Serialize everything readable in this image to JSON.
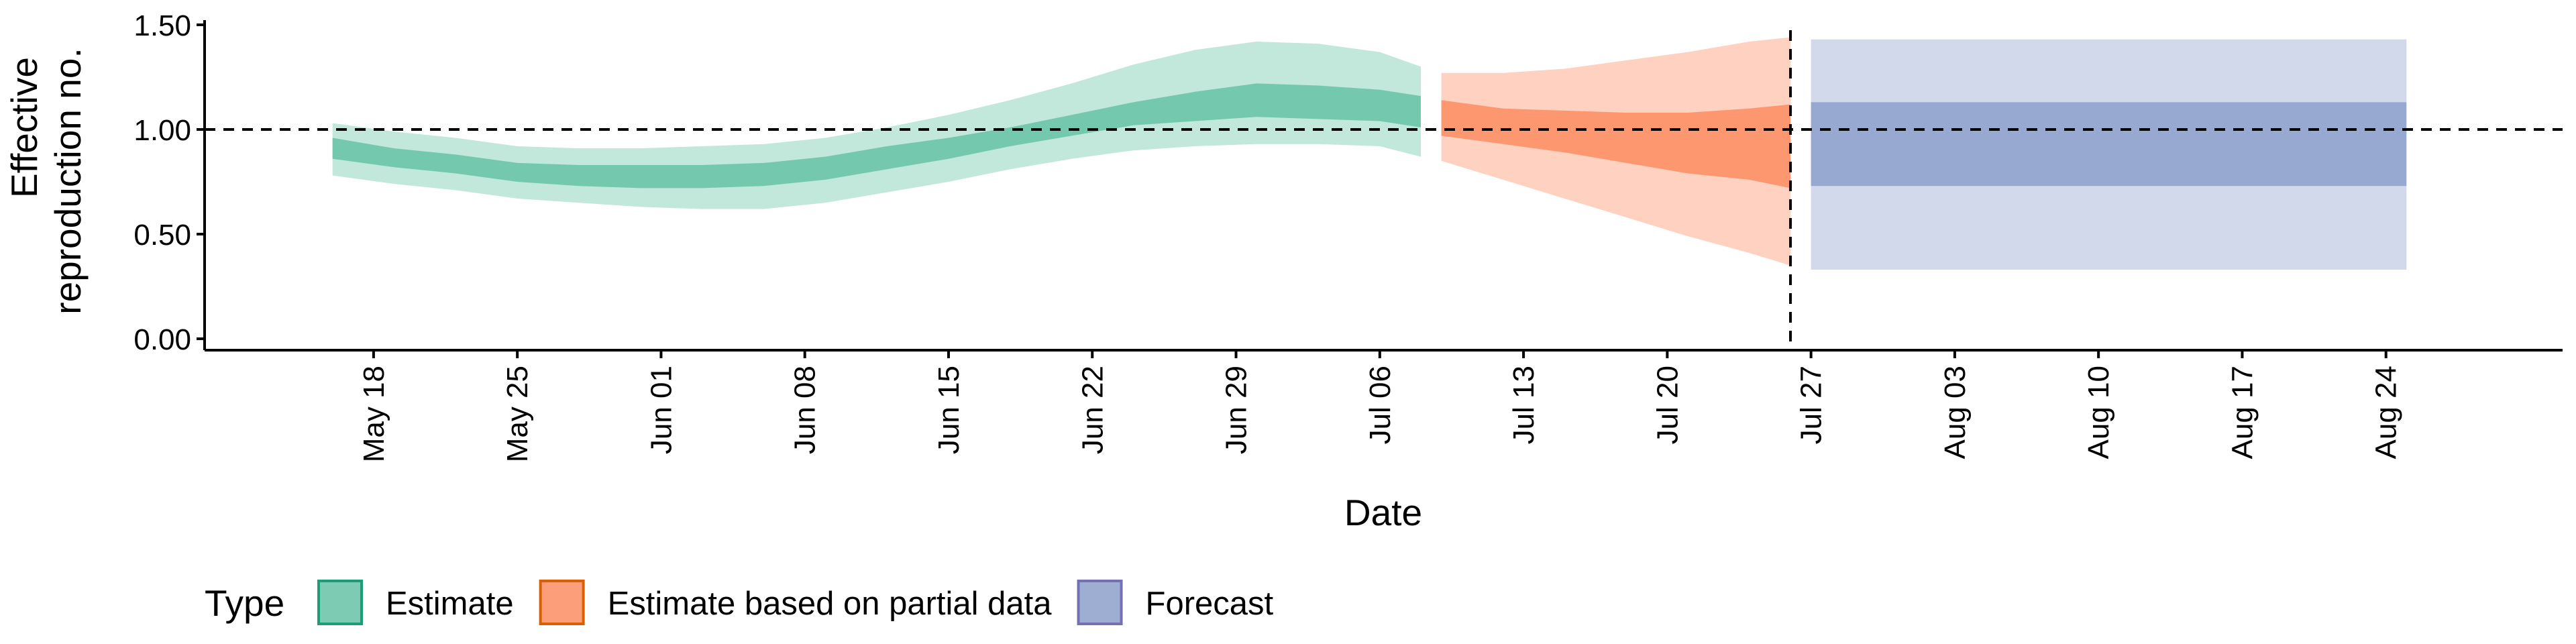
{
  "chart_data": {
    "type": "area",
    "xlabel": "Date",
    "ylabel_lines": [
      "Effective",
      "reproduction no."
    ],
    "ylim": [
      0,
      1.5
    ],
    "y_ticks": [
      {
        "value": 0,
        "label": "0.00"
      },
      {
        "value": 0.5,
        "label": "0.50"
      },
      {
        "value": 1,
        "label": "1.00"
      },
      {
        "value": 1.5,
        "label": "1.50"
      }
    ],
    "x_range": [
      "2020-05-10",
      "2020-08-31"
    ],
    "x_ticks": [
      {
        "date": "2020-05-18",
        "label": "May 18"
      },
      {
        "date": "2020-05-25",
        "label": "May 25"
      },
      {
        "date": "2020-06-01",
        "label": "Jun 01"
      },
      {
        "date": "2020-06-08",
        "label": "Jun 08"
      },
      {
        "date": "2020-06-15",
        "label": "Jun 15"
      },
      {
        "date": "2020-06-22",
        "label": "Jun 22"
      },
      {
        "date": "2020-06-29",
        "label": "Jun 29"
      },
      {
        "date": "2020-07-06",
        "label": "Jul 06"
      },
      {
        "date": "2020-07-13",
        "label": "Jul 13"
      },
      {
        "date": "2020-07-20",
        "label": "Jul 20"
      },
      {
        "date": "2020-07-27",
        "label": "Jul 27"
      },
      {
        "date": "2020-08-03",
        "label": "Aug 03"
      },
      {
        "date": "2020-08-10",
        "label": "Aug 10"
      },
      {
        "date": "2020-08-17",
        "label": "Aug 17"
      },
      {
        "date": "2020-08-24",
        "label": "Aug 24"
      }
    ],
    "reference_hline": 1.0,
    "reference_vline": "2020-07-26",
    "series": [
      {
        "name": "Estimate",
        "color": "#66C2A5",
        "stroke": "#1B9E77",
        "points": [
          {
            "date": "2020-05-16",
            "lower90": 0.78,
            "lower50": 0.86,
            "upper50": 0.96,
            "upper90": 1.03
          },
          {
            "date": "2020-05-19",
            "lower90": 0.74,
            "lower50": 0.82,
            "upper50": 0.91,
            "upper90": 0.99
          },
          {
            "date": "2020-05-22",
            "lower90": 0.71,
            "lower50": 0.79,
            "upper50": 0.88,
            "upper90": 0.96
          },
          {
            "date": "2020-05-25",
            "lower90": 0.67,
            "lower50": 0.75,
            "upper50": 0.84,
            "upper90": 0.92
          },
          {
            "date": "2020-05-28",
            "lower90": 0.65,
            "lower50": 0.73,
            "upper50": 0.83,
            "upper90": 0.91
          },
          {
            "date": "2020-05-31",
            "lower90": 0.63,
            "lower50": 0.72,
            "upper50": 0.83,
            "upper90": 0.91
          },
          {
            "date": "2020-06-03",
            "lower90": 0.62,
            "lower50": 0.72,
            "upper50": 0.83,
            "upper90": 0.92
          },
          {
            "date": "2020-06-06",
            "lower90": 0.62,
            "lower50": 0.73,
            "upper50": 0.84,
            "upper90": 0.93
          },
          {
            "date": "2020-06-09",
            "lower90": 0.65,
            "lower50": 0.76,
            "upper50": 0.87,
            "upper90": 0.96
          },
          {
            "date": "2020-06-12",
            "lower90": 0.7,
            "lower50": 0.81,
            "upper50": 0.92,
            "upper90": 1.01
          },
          {
            "date": "2020-06-15",
            "lower90": 0.75,
            "lower50": 0.86,
            "upper50": 0.96,
            "upper90": 1.07
          },
          {
            "date": "2020-06-18",
            "lower90": 0.81,
            "lower50": 0.92,
            "upper50": 1.01,
            "upper90": 1.14
          },
          {
            "date": "2020-06-21",
            "lower90": 0.86,
            "lower50": 0.97,
            "upper50": 1.07,
            "upper90": 1.22
          },
          {
            "date": "2020-06-24",
            "lower90": 0.9,
            "lower50": 1.02,
            "upper50": 1.13,
            "upper90": 1.31
          },
          {
            "date": "2020-06-27",
            "lower90": 0.92,
            "lower50": 1.04,
            "upper50": 1.18,
            "upper90": 1.38
          },
          {
            "date": "2020-06-30",
            "lower90": 0.93,
            "lower50": 1.06,
            "upper50": 1.22,
            "upper90": 1.42
          },
          {
            "date": "2020-07-03",
            "lower90": 0.93,
            "lower50": 1.05,
            "upper50": 1.21,
            "upper90": 1.41
          },
          {
            "date": "2020-07-06",
            "lower90": 0.92,
            "lower50": 1.04,
            "upper50": 1.19,
            "upper90": 1.37
          },
          {
            "date": "2020-07-08",
            "lower90": 0.87,
            "lower50": 1.01,
            "upper50": 1.16,
            "upper90": 1.3
          }
        ]
      },
      {
        "name": "Estimate based on partial data",
        "color": "#FC8D62",
        "stroke": "#D95F02",
        "points": [
          {
            "date": "2020-07-09",
            "lower90": 0.85,
            "lower50": 0.97,
            "upper50": 1.14,
            "upper90": 1.27
          },
          {
            "date": "2020-07-12",
            "lower90": 0.76,
            "lower50": 0.93,
            "upper50": 1.1,
            "upper90": 1.27
          },
          {
            "date": "2020-07-15",
            "lower90": 0.67,
            "lower50": 0.89,
            "upper50": 1.09,
            "upper90": 1.29
          },
          {
            "date": "2020-07-18",
            "lower90": 0.58,
            "lower50": 0.84,
            "upper50": 1.08,
            "upper90": 1.33
          },
          {
            "date": "2020-07-21",
            "lower90": 0.49,
            "lower50": 0.79,
            "upper50": 1.08,
            "upper90": 1.37
          },
          {
            "date": "2020-07-24",
            "lower90": 0.41,
            "lower50": 0.76,
            "upper50": 1.1,
            "upper90": 1.42
          },
          {
            "date": "2020-07-26",
            "lower90": 0.35,
            "lower50": 0.72,
            "upper50": 1.12,
            "upper90": 1.44
          }
        ]
      },
      {
        "name": "Forecast",
        "color": "#8DA0CB",
        "stroke": "#7570B3",
        "points": [
          {
            "date": "2020-07-27",
            "lower90": 0.33,
            "lower50": 0.73,
            "upper50": 1.13,
            "upper90": 1.43
          },
          {
            "date": "2020-08-25",
            "lower90": 0.33,
            "lower50": 0.73,
            "upper50": 1.13,
            "upper90": 1.43
          }
        ]
      }
    ],
    "legend": {
      "position": "bottom-left",
      "title": "Type",
      "items": [
        "Estimate",
        "Estimate based on partial data",
        "Forecast"
      ]
    }
  }
}
